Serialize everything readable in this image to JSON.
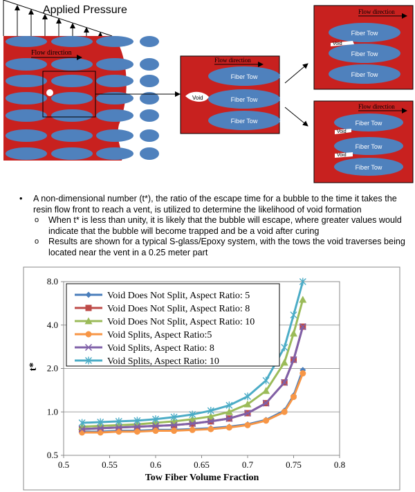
{
  "diagram": {
    "applied_pressure": "Applied Pressure",
    "flow_direction": "Flow direction",
    "fiber_tow": "Fiber Tow",
    "void": "Void",
    "colors": {
      "resin": "#c8211f",
      "tow": "#4f81bd",
      "void": "#ffffff"
    }
  },
  "text": {
    "bullet1": "A non-dimensional number (t*), the ratio of the escape time for a bubble to the time it takes the resin flow front to reach a vent, is utilized to determine the likelihood of void formation",
    "sub1": "When t* is less than unity, it is likely that the bubble will escape, where greater values would indicate that the bubble will become trapped and be a void after curing",
    "sub2": "Results are shown for a typical S-glass/Epoxy system, with the tows the void traverses being located near the vent in a 0.25 meter part"
  },
  "chart_data": {
    "type": "line",
    "xlabel": "Tow Fiber Volume Fraction",
    "ylabel": "t*",
    "x_ticks": [
      "0.5",
      "0.55",
      "0.6",
      "0.65",
      "0.7",
      "0.75",
      "0.8"
    ],
    "y_ticks": [
      "0.5",
      "1.0",
      "2.0",
      "4.0",
      "8.0"
    ],
    "xlim": [
      0.5,
      0.8
    ],
    "ylim": [
      0.5,
      8.0
    ],
    "y_scale": "log",
    "grid": "horizontal",
    "legend_position": "top-left",
    "x": [
      0.52,
      0.54,
      0.56,
      0.58,
      0.6,
      0.62,
      0.64,
      0.66,
      0.68,
      0.7,
      0.72,
      0.74,
      0.75,
      0.76
    ],
    "series": [
      {
        "name": "Void Does Not Split, Aspect Ratio: 5",
        "color": "#4a7ebb",
        "marker": "diamond",
        "values": [
          0.73,
          0.73,
          0.74,
          0.74,
          0.75,
          0.75,
          0.76,
          0.77,
          0.79,
          0.82,
          0.88,
          1.02,
          1.3,
          1.95
        ]
      },
      {
        "name": "Void Does Not Split, Aspect Ratio: 8",
        "color": "#be4b48",
        "marker": "square",
        "values": [
          0.76,
          0.77,
          0.78,
          0.79,
          0.8,
          0.81,
          0.83,
          0.86,
          0.9,
          0.98,
          1.15,
          1.6,
          2.3,
          3.9
        ]
      },
      {
        "name": "Void Does Not Split, Aspect Ratio: 10",
        "color": "#9bbb59",
        "marker": "triangle",
        "values": [
          0.79,
          0.8,
          0.81,
          0.82,
          0.84,
          0.86,
          0.89,
          0.93,
          1.0,
          1.13,
          1.4,
          2.2,
          3.5,
          6.0
        ]
      },
      {
        "name": "Void Splits, Aspect Ratio:5",
        "color": "#f79646",
        "marker": "circle",
        "values": [
          0.72,
          0.72,
          0.73,
          0.73,
          0.74,
          0.74,
          0.75,
          0.76,
          0.78,
          0.81,
          0.87,
          1.0,
          1.27,
          1.85
        ]
      },
      {
        "name": "Void Splits, Aspect Ratio: 8",
        "color": "#7f60a8",
        "marker": "x",
        "values": [
          0.76,
          0.77,
          0.78,
          0.79,
          0.8,
          0.81,
          0.83,
          0.86,
          0.9,
          0.98,
          1.15,
          1.6,
          2.3,
          3.9
        ]
      },
      {
        "name": "Void Splits, Aspect Ratio: 10",
        "color": "#4bacc6",
        "marker": "star",
        "values": [
          0.84,
          0.85,
          0.86,
          0.87,
          0.89,
          0.92,
          0.96,
          1.02,
          1.11,
          1.28,
          1.65,
          2.8,
          4.7,
          8.0
        ]
      }
    ]
  }
}
